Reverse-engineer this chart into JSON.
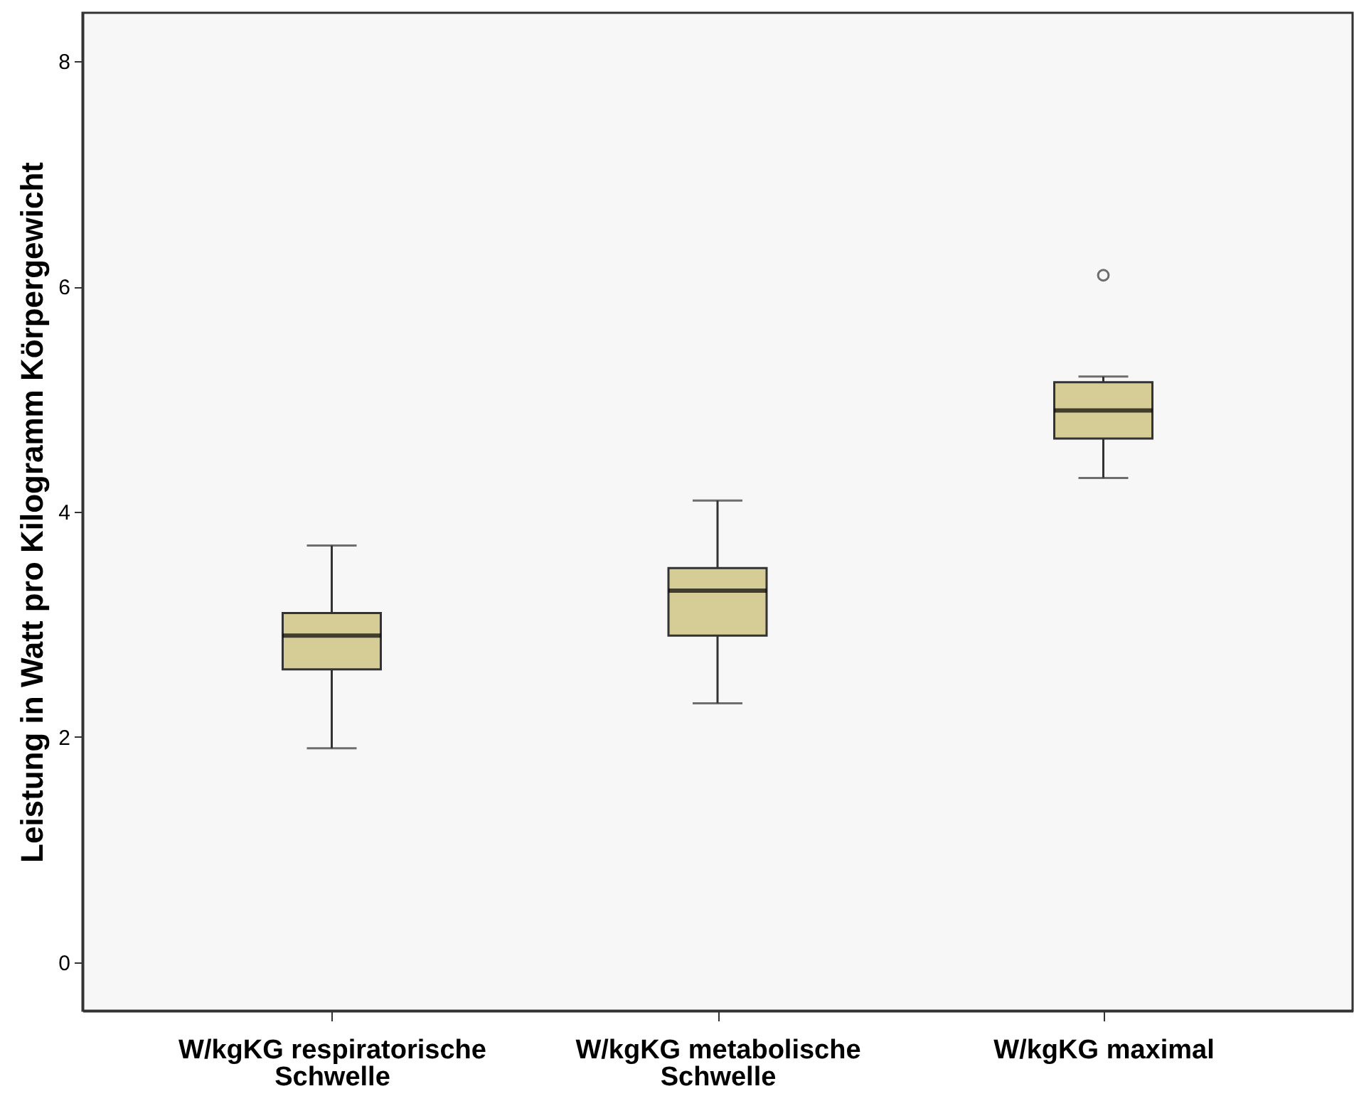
{
  "chart_data": {
    "type": "box",
    "ylabel": "Leistung in Watt pro Kilogramm Körpergewicht",
    "categories": [
      "W/kgKG respiratorische Schwelle",
      "W/kgKG metabolische Schwelle",
      "W/kgKG maximal"
    ],
    "series": [
      {
        "color": "#d6cd96",
        "boxes": [
          {
            "low": 1.9,
            "q1": 2.6,
            "median": 2.9,
            "q3": 3.1,
            "high": 3.7
          },
          {
            "low": 2.3,
            "q1": 2.9,
            "median": 3.3,
            "q3": 3.5,
            "high": 4.1
          },
          {
            "low": 4.3,
            "q1": 4.65,
            "median": 4.9,
            "q3": 5.15,
            "high": 5.2,
            "outliers": [
              6.1
            ]
          }
        ]
      }
    ],
    "ylim": [
      -0.43,
      8.43
    ],
    "yticks": [
      0,
      2,
      4,
      6,
      8
    ]
  }
}
